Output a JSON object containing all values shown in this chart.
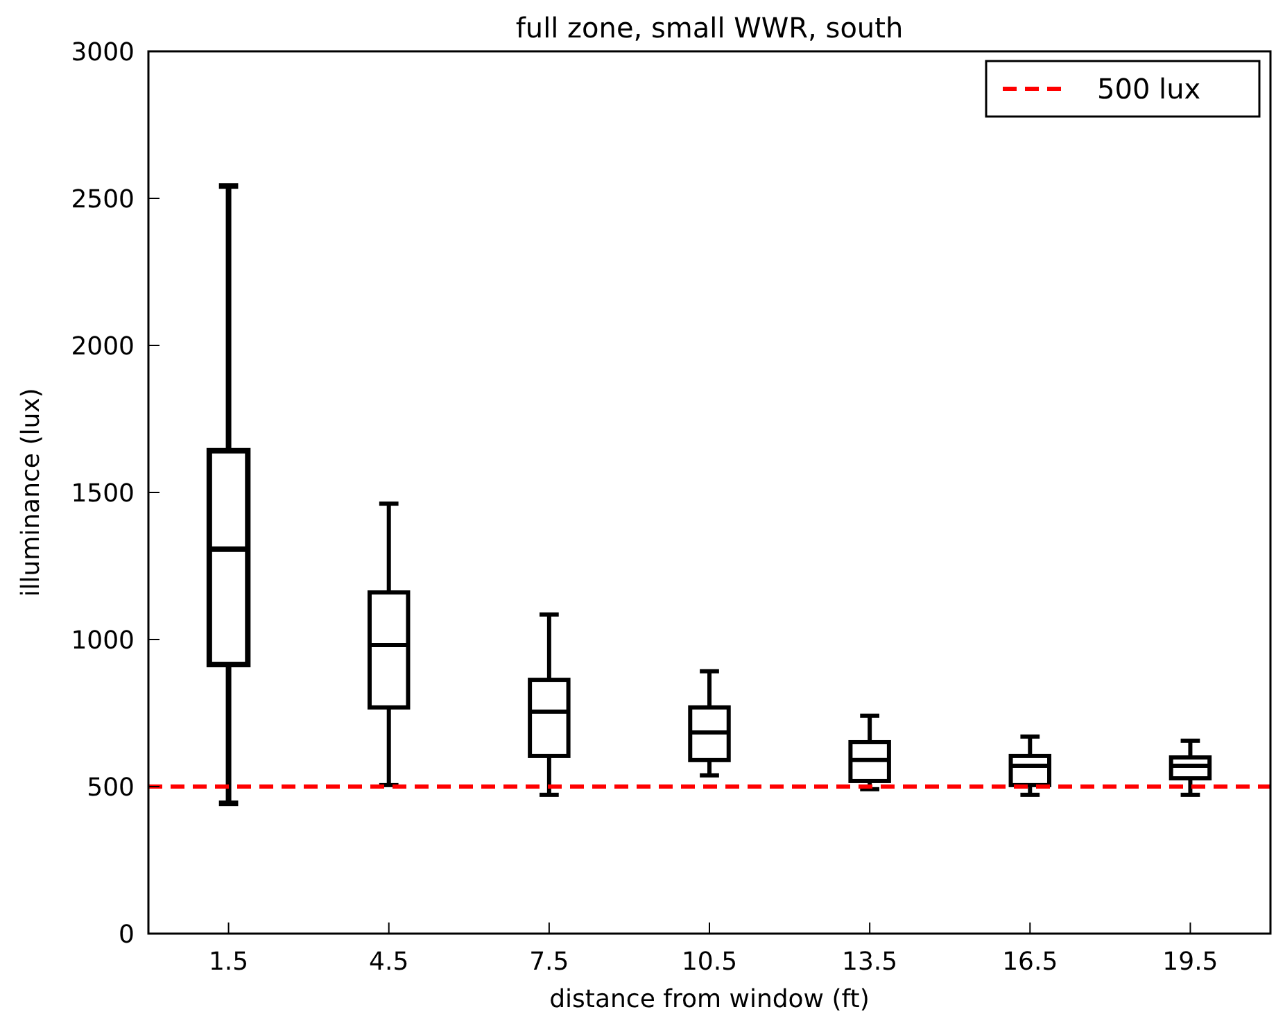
{
  "chart_data": {
    "type": "box",
    "title": "full zone, small WWR, south",
    "xlabel": "distance from window (ft)",
    "ylabel": "illuminance (lux)",
    "categories": [
      "1.5",
      "4.5",
      "7.5",
      "10.5",
      "13.5",
      "16.5",
      "19.5"
    ],
    "boxes": [
      {
        "low": 443,
        "q1": 915,
        "median": 1307,
        "q3": 1642,
        "high": 2542
      },
      {
        "low": 505,
        "q1": 769,
        "median": 981,
        "q3": 1160,
        "high": 1462
      },
      {
        "low": 472,
        "q1": 604,
        "median": 755,
        "q3": 863,
        "high": 1085
      },
      {
        "low": 538,
        "q1": 590,
        "median": 684,
        "q3": 769,
        "high": 892
      },
      {
        "low": 491,
        "q1": 519,
        "median": 590,
        "q3": 651,
        "high": 741
      },
      {
        "low": 472,
        "q1": 505,
        "median": 571,
        "q3": 604,
        "high": 670
      },
      {
        "low": 472,
        "q1": 528,
        "median": 571,
        "q3": 599,
        "high": 656
      }
    ],
    "color": "#000000",
    "ylim": [
      0,
      3000
    ],
    "yticks": [
      0,
      500,
      1000,
      1500,
      2000,
      2500,
      3000
    ],
    "ref_lines": [
      {
        "axis": "y",
        "value": 500,
        "label": "500 lux",
        "color": "#ff0000",
        "line_style": "dashed"
      }
    ],
    "legend": "top right",
    "grid": false
  }
}
